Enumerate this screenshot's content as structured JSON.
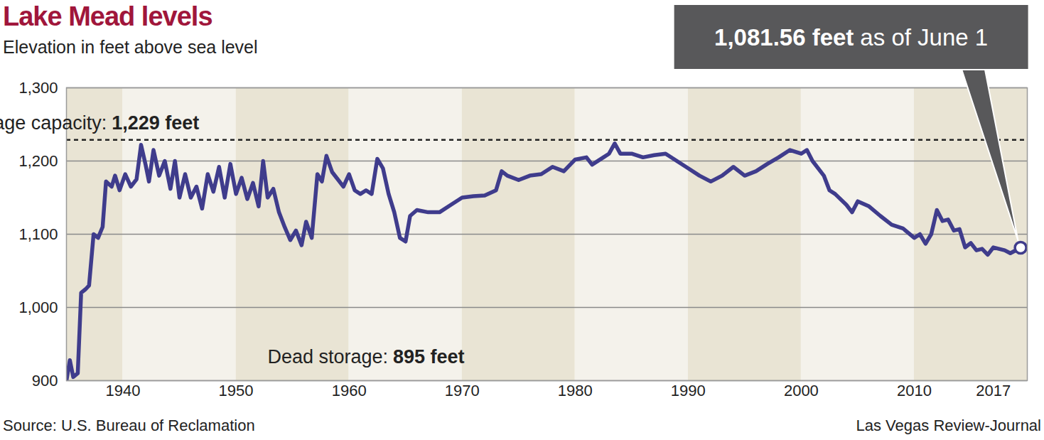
{
  "chart_data": {
    "type": "line",
    "title": "Lake Mead levels",
    "subtitle": "Elevation in feet above sea level",
    "source": "Source: U.S. Bureau of Reclamation",
    "credit": "Las Vegas Review-Journal",
    "x": [
      1935.0,
      1935.3,
      1935.6,
      1936.0,
      1936.3,
      1936.7,
      1937.0,
      1937.4,
      1937.8,
      1938.2,
      1938.5,
      1939.0,
      1939.3,
      1939.7,
      1940.2,
      1940.7,
      1941.2,
      1941.6,
      1942.0,
      1942.3,
      1942.7,
      1943.2,
      1943.7,
      1944.2,
      1944.6,
      1945.0,
      1945.5,
      1946.0,
      1946.5,
      1947.0,
      1947.5,
      1948.0,
      1948.5,
      1949.0,
      1949.5,
      1950.0,
      1950.5,
      1951.0,
      1951.5,
      1952.0,
      1952.4,
      1952.8,
      1953.3,
      1953.8,
      1954.3,
      1954.8,
      1955.3,
      1955.8,
      1956.2,
      1956.7,
      1957.2,
      1957.6,
      1958.0,
      1958.5,
      1959.0,
      1959.5,
      1960.0,
      1960.5,
      1961.0,
      1961.5,
      1962.0,
      1962.5,
      1963.0,
      1963.5,
      1964.0,
      1964.5,
      1965.0,
      1965.4,
      1966.0,
      1967.0,
      1968.0,
      1969.0,
      1970.0,
      1971.0,
      1972.0,
      1973.0,
      1973.5,
      1974.0,
      1975.0,
      1976.0,
      1977.0,
      1978.0,
      1979.0,
      1980.0,
      1981.0,
      1981.5,
      1982.5,
      1983.0,
      1983.5,
      1984.0,
      1985.0,
      1986.0,
      1987.0,
      1988.0,
      1989.0,
      1990.0,
      1991.0,
      1992.0,
      1993.0,
      1994.0,
      1995.0,
      1996.0,
      1997.0,
      1998.0,
      1999.0,
      2000.0,
      2000.5,
      2001.0,
      2002.0,
      2002.5,
      2003.0,
      2004.0,
      2004.5,
      2005.0,
      2006.0,
      2007.0,
      2008.0,
      2009.0,
      2010.0,
      2010.5,
      2011.0,
      2011.5,
      2012.0,
      2012.5,
      2013.0,
      2013.5,
      2014.0,
      2014.5,
      2015.0,
      2015.5,
      2016.0,
      2016.5,
      2017.0,
      2018.0,
      2018.5,
      2019.41
    ],
    "values": [
      900,
      928,
      905,
      910,
      1020,
      1025,
      1030,
      1100,
      1095,
      1110,
      1172,
      1165,
      1180,
      1160,
      1182,
      1165,
      1175,
      1222,
      1195,
      1172,
      1215,
      1180,
      1200,
      1162,
      1200,
      1150,
      1182,
      1150,
      1165,
      1135,
      1182,
      1158,
      1192,
      1150,
      1196,
      1155,
      1177,
      1148,
      1170,
      1138,
      1200,
      1150,
      1162,
      1130,
      1110,
      1092,
      1105,
      1085,
      1117,
      1095,
      1182,
      1172,
      1207,
      1185,
      1175,
      1165,
      1182,
      1160,
      1155,
      1160,
      1155,
      1203,
      1190,
      1155,
      1130,
      1095,
      1090,
      1125,
      1133,
      1130,
      1130,
      1140,
      1150,
      1152,
      1153,
      1160,
      1186,
      1180,
      1174,
      1180,
      1182,
      1192,
      1186,
      1202,
      1205,
      1195,
      1205,
      1210,
      1224,
      1210,
      1210,
      1205,
      1208,
      1210,
      1200,
      1190,
      1180,
      1172,
      1180,
      1192,
      1180,
      1186,
      1196,
      1205,
      1215,
      1210,
      1215,
      1200,
      1180,
      1160,
      1155,
      1140,
      1130,
      1145,
      1138,
      1125,
      1113,
      1108,
      1095,
      1100,
      1087,
      1100,
      1133,
      1118,
      1120,
      1105,
      1107,
      1082,
      1088,
      1078,
      1080,
      1072,
      1082,
      1078,
      1074,
      1081.56
    ],
    "color": "#3f3c8c",
    "xlim": [
      1935,
      2020
    ],
    "xticks": [
      1940,
      1950,
      1960,
      1970,
      1980,
      1990,
      2000,
      2010,
      2017
    ],
    "ylim": [
      900,
      1300
    ],
    "yticks": [
      900,
      {
        "value": 1000,
        "label": "1,000"
      },
      {
        "value": 1100,
        "label": "1,100"
      },
      {
        "value": 1200,
        "label": "1,200"
      },
      {
        "value": 1300,
        "label": "1,300"
      }
    ],
    "grid": true,
    "annotations": [
      {
        "label": "Storage capacity:",
        "value_label": "1,229 feet",
        "value": 1229,
        "line_style": "dashed"
      },
      {
        "label": "Dead storage:",
        "value_label": "895 feet",
        "value": 895
      }
    ],
    "callout": {
      "label": "1,081.56 feet",
      "text": "as of June 1",
      "x": 2019.41,
      "value": 1081.56,
      "marker": "circle"
    }
  }
}
